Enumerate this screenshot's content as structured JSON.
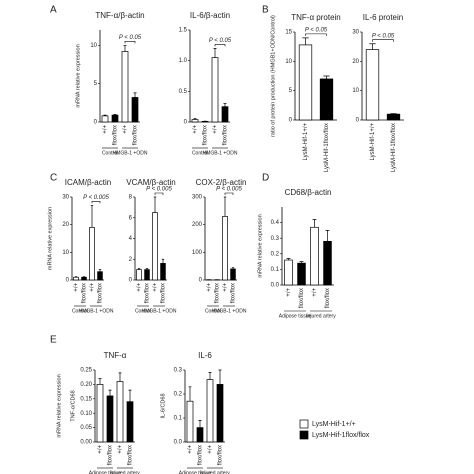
{
  "legend": {
    "entries": [
      {
        "name": "LysM-Hif-1+/+",
        "color": "#ffffff"
      },
      {
        "name": "LysM-Hif-1flox/flox",
        "color": "#000000"
      }
    ]
  },
  "chart_data": [
    {
      "type": "bar",
      "panel": "A",
      "title": "TNF-α/β-actin",
      "y_label": "mRNA relative expression",
      "annotation": "P < 0.05",
      "categories": [
        "+/+",
        "flox/flox",
        "+/+",
        "flox/flox"
      ],
      "groups": [
        "Control",
        "HMGB-1 +ODN"
      ],
      "values": [
        0.8,
        0.9,
        9.2,
        3.2
      ],
      "errors": [
        0.1,
        0.1,
        0.8,
        0.6
      ],
      "colors": [
        "#ffffff",
        "#000000",
        "#ffffff",
        "#000000"
      ],
      "ylim": [
        0,
        12
      ],
      "yticks": [
        0,
        5,
        10
      ]
    },
    {
      "type": "bar",
      "title": "IL-6/β-actin",
      "annotation": "P < 0.05",
      "categories": [
        "+/+",
        "flox/flox",
        "+/+",
        "flox/flox"
      ],
      "groups": [
        "Control",
        "HMGB-1 +ODN"
      ],
      "values": [
        0.04,
        0.01,
        1.05,
        0.25
      ],
      "errors": [
        0.02,
        0.005,
        0.15,
        0.05
      ],
      "colors": [
        "#ffffff",
        "#000000",
        "#ffffff",
        "#000000"
      ],
      "ylim": [
        0,
        1.5
      ],
      "yticks": [
        0,
        {
          "value": 0.5,
          "label": "0.5"
        },
        {
          "value": 1,
          "label": "1.0"
        },
        {
          "value": 1.5,
          "label": "1.5"
        }
      ]
    },
    {
      "type": "bar",
      "panel": "B",
      "title": "TNF-α protein",
      "y_label": "ratio of protein production (HMGB1+ODN/Control)",
      "annotation": "P < 0.05",
      "categories": [
        "LysM-Hif-1+/+",
        "LysM-Hif-1flox/flox"
      ],
      "values": [
        12.8,
        7
      ],
      "errors": [
        1.2,
        0.5
      ],
      "colors": [
        "#ffffff",
        "#000000"
      ],
      "ylim": [
        0,
        15
      ],
      "yticks": [
        0,
        5,
        10,
        15
      ]
    },
    {
      "type": "bar",
      "title": "IL-6 protein",
      "annotation": "P < 0.05",
      "categories": [
        "LysM-Hif-1+/+",
        "LysM-Hif-1flox/flox"
      ],
      "values": [
        24,
        2
      ],
      "errors": [
        2,
        0.2
      ],
      "colors": [
        "#ffffff",
        "#000000"
      ],
      "ylim": [
        0,
        30
      ],
      "yticks": [
        0,
        10,
        20,
        30
      ]
    },
    {
      "type": "bar",
      "panel": "C",
      "title": "ICAM/β-actin",
      "y_label": "mRNA relative expression",
      "annotation": "P < 0.005",
      "categories": [
        "+/+",
        "flox/flox",
        "+/+",
        "flox/flox"
      ],
      "groups": [
        "Control",
        "HMGB-1 +ODN"
      ],
      "values": [
        1,
        1,
        19,
        3
      ],
      "errors": [
        0.2,
        0.2,
        8,
        0.8
      ],
      "colors": [
        "#ffffff",
        "#000000",
        "#ffffff",
        "#000000"
      ],
      "ylim": [
        0,
        30
      ],
      "yticks": [
        0,
        10,
        20,
        30
      ]
    },
    {
      "type": "bar",
      "title": "VCAM/β-actin",
      "annotation": "P < 0.005",
      "categories": [
        "+/+",
        "flox/flox",
        "+/+",
        "flox/flox"
      ],
      "groups": [
        "Control",
        "HMGB-1 +ODN"
      ],
      "values": [
        1,
        1,
        6.5,
        1.6
      ],
      "errors": [
        0.1,
        0.1,
        1.5,
        0.4
      ],
      "colors": [
        "#ffffff",
        "#000000",
        "#ffffff",
        "#000000"
      ],
      "ylim": [
        0,
        8
      ],
      "yticks": [
        0,
        2,
        4,
        6,
        8
      ]
    },
    {
      "type": "bar",
      "title": "COX-2/β-actin",
      "annotation": "P < 0.005",
      "categories": [
        "+/+",
        "flox/flox",
        "+/+",
        "flox/flox"
      ],
      "groups": [
        "Control",
        "HMGB-1 +ODN"
      ],
      "values": [
        1,
        1,
        230,
        40
      ],
      "errors": [
        0.2,
        0.2,
        70,
        5
      ],
      "colors": [
        "#ffffff",
        "#000000",
        "#ffffff",
        "#000000"
      ],
      "ylim": [
        0,
        300
      ],
      "yticks": [
        0,
        100,
        200,
        300
      ]
    },
    {
      "type": "bar",
      "panel": "D",
      "title": "CD68/β-actin",
      "y_label": "mRNA relative expression",
      "categories": [
        "+/+",
        "flox/flox",
        "+/+",
        "flox/flox"
      ],
      "groups": [
        "Adipose tissue",
        "Injured artery"
      ],
      "values": [
        0.16,
        0.14,
        0.37,
        0.28
      ],
      "errors": [
        0.01,
        0.01,
        0.05,
        0.07
      ],
      "colors": [
        "#ffffff",
        "#000000",
        "#ffffff",
        "#000000"
      ],
      "ylim": [
        0,
        0.5
      ],
      "yticks": [
        {
          "value": 0,
          "label": "0.0"
        },
        0.1,
        0.2,
        0.3,
        0.4
      ]
    },
    {
      "type": "bar",
      "panel": "E",
      "title": "TNF-α",
      "y_label": "TNF-α/CD68",
      "y_label_outer": "mRNA relative expression",
      "categories": [
        "+/+",
        "flox/flox",
        "+/+",
        "flox/flox"
      ],
      "groups": [
        "Adipose tissue",
        "Injured artery"
      ],
      "values": [
        0.2,
        0.16,
        0.21,
        0.14
      ],
      "errors": [
        0.02,
        0.02,
        0.03,
        0.04
      ],
      "colors": [
        "#ffffff",
        "#000000",
        "#ffffff",
        "#000000"
      ],
      "ylim": [
        0,
        0.25
      ],
      "yticks": [
        {
          "value": 0,
          "label": "0.00"
        },
        0.05,
        {
          "value": 0.1,
          "label": "0.10"
        },
        0.15,
        {
          "value": 0.2,
          "label": "0.20"
        },
        0.25
      ]
    },
    {
      "type": "bar",
      "title": "IL-6",
      "y_label": "IL-6/CD68",
      "categories": [
        "+/+",
        "flox/flox",
        "+/+",
        "flox/flox"
      ],
      "groups": [
        "Adipose tissue",
        "Injured artery"
      ],
      "values": [
        0.17,
        0.06,
        0.26,
        0.24
      ],
      "errors": [
        0.06,
        0.03,
        0.03,
        0.06
      ],
      "colors": [
        "#ffffff",
        "#000000",
        "#ffffff",
        "#000000"
      ],
      "ylim": [
        0,
        0.3
      ],
      "yticks": [
        {
          "value": 0,
          "label": "0.0"
        },
        0.1,
        0.2,
        0.3
      ]
    }
  ]
}
